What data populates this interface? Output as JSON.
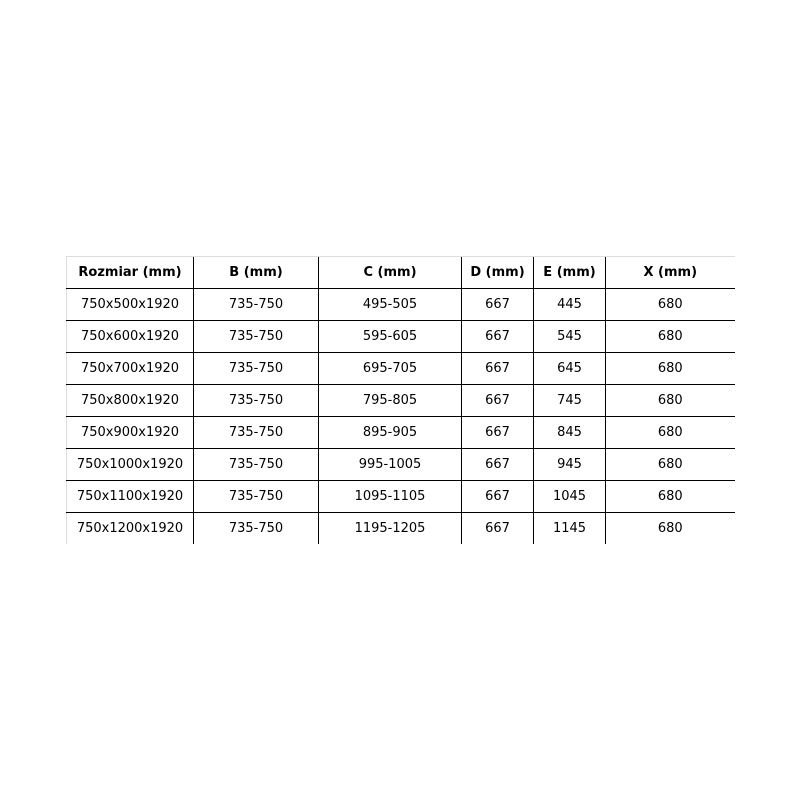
{
  "table": {
    "headers": [
      "Rozmiar (mm)",
      "B (mm)",
      "C (mm)",
      "D (mm)",
      "E (mm)",
      "X (mm)"
    ],
    "rows": [
      [
        "750x500x1920",
        "735-750",
        "495-505",
        "667",
        "445",
        "680"
      ],
      [
        "750x600x1920",
        "735-750",
        "595-605",
        "667",
        "545",
        "680"
      ],
      [
        "750x700x1920",
        "735-750",
        "695-705",
        "667",
        "645",
        "680"
      ],
      [
        "750x800x1920",
        "735-750",
        "795-805",
        "667",
        "745",
        "680"
      ],
      [
        "750x900x1920",
        "735-750",
        "895-905",
        "667",
        "845",
        "680"
      ],
      [
        "750x1000x1920",
        "735-750",
        "995-1005",
        "667",
        "945",
        "680"
      ],
      [
        "750x1100x1920",
        "735-750",
        "1095-1105",
        "667",
        "1045",
        "680"
      ],
      [
        "750x1200x1920",
        "735-750",
        "1195-1205",
        "667",
        "1145",
        "680"
      ]
    ]
  }
}
